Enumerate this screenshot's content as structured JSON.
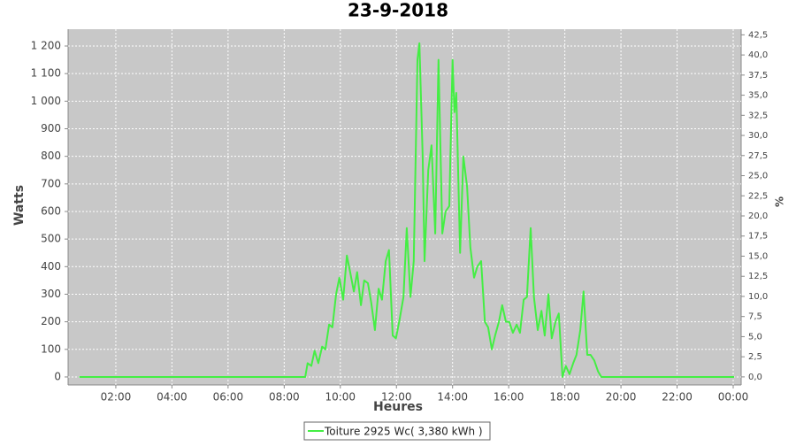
{
  "chart_data": {
    "type": "line",
    "title": "23-9-2018",
    "x_label": "Heures",
    "y_label": "Watts",
    "y2_label": "%",
    "grid": true,
    "legend": "bottom",
    "xlim": [
      18,
      1457
    ],
    "xticks": [
      {
        "value": 120,
        "label": "02:00"
      },
      {
        "value": 240,
        "label": "04:00"
      },
      {
        "value": 360,
        "label": "06:00"
      },
      {
        "value": 480,
        "label": "08:00"
      },
      {
        "value": 600,
        "label": "10:00"
      },
      {
        "value": 720,
        "label": "12:00"
      },
      {
        "value": 840,
        "label": "14:00"
      },
      {
        "value": 960,
        "label": "16:00"
      },
      {
        "value": 1080,
        "label": "18:00"
      },
      {
        "value": 1200,
        "label": "20:00"
      },
      {
        "value": 1320,
        "label": "22:00"
      },
      {
        "value": 1440,
        "label": "00:00"
      }
    ],
    "ylim": [
      -29,
      1261
    ],
    "yticks": [
      0,
      100,
      200,
      300,
      400,
      500,
      600,
      700,
      800,
      900,
      {
        "value": 1000,
        "label": "1 000"
      },
      {
        "value": 1100,
        "label": "1 100"
      },
      {
        "value": 1200,
        "label": "1 200"
      }
    ],
    "y2lim": [
      -1.0,
      43.2
    ],
    "y2ticks": [
      {
        "value": 0,
        "label": "0,0"
      },
      {
        "value": 2.5,
        "label": "2,5"
      },
      {
        "value": 5,
        "label": "5,0"
      },
      {
        "value": 7.5,
        "label": "7,5"
      },
      {
        "value": 10,
        "label": "10,0"
      },
      {
        "value": 12.5,
        "label": "12,5"
      },
      {
        "value": 15,
        "label": "15,0"
      },
      {
        "value": 17.5,
        "label": "17,5"
      },
      {
        "value": 20,
        "label": "20,0"
      },
      {
        "value": 22.5,
        "label": "22,5"
      },
      {
        "value": 25,
        "label": "25,0"
      },
      {
        "value": 27.5,
        "label": "27,5"
      },
      {
        "value": 30,
        "label": "30,0"
      },
      {
        "value": 32.5,
        "label": "32,5"
      },
      {
        "value": 35,
        "label": "35,0"
      },
      {
        "value": 37.5,
        "label": "37,5"
      },
      {
        "value": 40,
        "label": "40,0"
      },
      {
        "value": 42.5,
        "label": "42,5"
      }
    ],
    "x": [
      42,
      525,
      530,
      538,
      545,
      553,
      561,
      568,
      576,
      583,
      591,
      598,
      606,
      614,
      621,
      629,
      636,
      644,
      651,
      659,
      666,
      674,
      682,
      689,
      697,
      704,
      712,
      719,
      727,
      735,
      742,
      750,
      757,
      765,
      769,
      776,
      780,
      788,
      795,
      803,
      810,
      818,
      825,
      833,
      840,
      844,
      848,
      856,
      863,
      871,
      878,
      886,
      893,
      901,
      909,
      916,
      924,
      931,
      939,
      946,
      954,
      961,
      969,
      977,
      984,
      992,
      999,
      1007,
      1014,
      1022,
      1030,
      1037,
      1045,
      1052,
      1060,
      1067,
      1075,
      1082,
      1090,
      1098,
      1105,
      1113,
      1120,
      1128,
      1135,
      1143,
      1151,
      1158,
      1442
    ],
    "series": [
      {
        "name": "Toiture 2925 Wc( 3,380 kWh )",
        "color": "#44ee44",
        "values": [
          0,
          0,
          50,
          40,
          95,
          50,
          110,
          100,
          190,
          180,
          300,
          360,
          280,
          440,
          380,
          310,
          380,
          260,
          350,
          340,
          270,
          170,
          320,
          280,
          420,
          460,
          150,
          140,
          210,
          290,
          540,
          290,
          420,
          1150,
          1210,
          800,
          420,
          750,
          840,
          520,
          1150,
          520,
          600,
          620,
          1150,
          960,
          1030,
          450,
          800,
          690,
          470,
          360,
          400,
          420,
          200,
          180,
          100,
          150,
          200,
          260,
          200,
          200,
          160,
          190,
          160,
          280,
          290,
          540,
          290,
          170,
          240,
          150,
          300,
          140,
          200,
          230,
          0,
          40,
          10,
          50,
          80,
          170,
          310,
          80,
          80,
          60,
          20,
          0,
          0
        ]
      }
    ]
  }
}
